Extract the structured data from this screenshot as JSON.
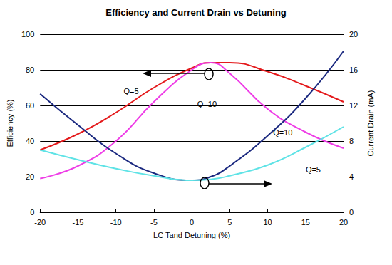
{
  "chart_data": {
    "type": "line",
    "title": "Efficiency and Current Drain vs Detuning",
    "xlabel": "LC Tand Detuning (%)",
    "ylabel": "Efficiency (%)",
    "y2label": "Current Drain (mA)",
    "x": [
      -20,
      -15,
      -10,
      -5,
      0,
      2.5,
      5,
      10,
      15,
      20
    ],
    "xlim": [
      -20,
      20
    ],
    "xticks": [
      -20,
      -15,
      -10,
      -5,
      0,
      5,
      10,
      15,
      20
    ],
    "ylim": [
      0,
      100
    ],
    "yticks": [
      0,
      20,
      40,
      60,
      80,
      100
    ],
    "y2lim": [
      0,
      20
    ],
    "y2ticks": [
      0,
      4,
      8,
      12,
      16,
      20
    ],
    "grid": true,
    "series": [
      {
        "color": "#e41a1c",
        "values": [
          35,
          44,
          56,
          70,
          81,
          84,
          84,
          79,
          71,
          62
        ]
      },
      {
        "color": "#ee3de6",
        "values": [
          19,
          26,
          40,
          62,
          80,
          84,
          78,
          58,
          45,
          36
        ]
      },
      {
        "color": "#1c2a80",
        "axis": "y2",
        "values": [
          13.3,
          9.8,
          6.6,
          4.4,
          3.6,
          4.0,
          5.2,
          8.6,
          12.8,
          18.1
        ]
      },
      {
        "color": "#5fe3e6",
        "axis": "y2",
        "values": [
          7.0,
          5.9,
          4.9,
          4.1,
          3.6,
          3.7,
          4.1,
          5.3,
          7.3,
          9.6
        ]
      }
    ],
    "annotations": [
      {
        "text": "Q=5",
        "x": -8,
        "y": 68
      },
      {
        "text": "Q=10",
        "x": 2,
        "y": 61
      },
      {
        "text": "Q=10",
        "x": 12,
        "y": 45
      },
      {
        "text": "Q=5",
        "x": 16,
        "y": 24
      }
    ]
  }
}
